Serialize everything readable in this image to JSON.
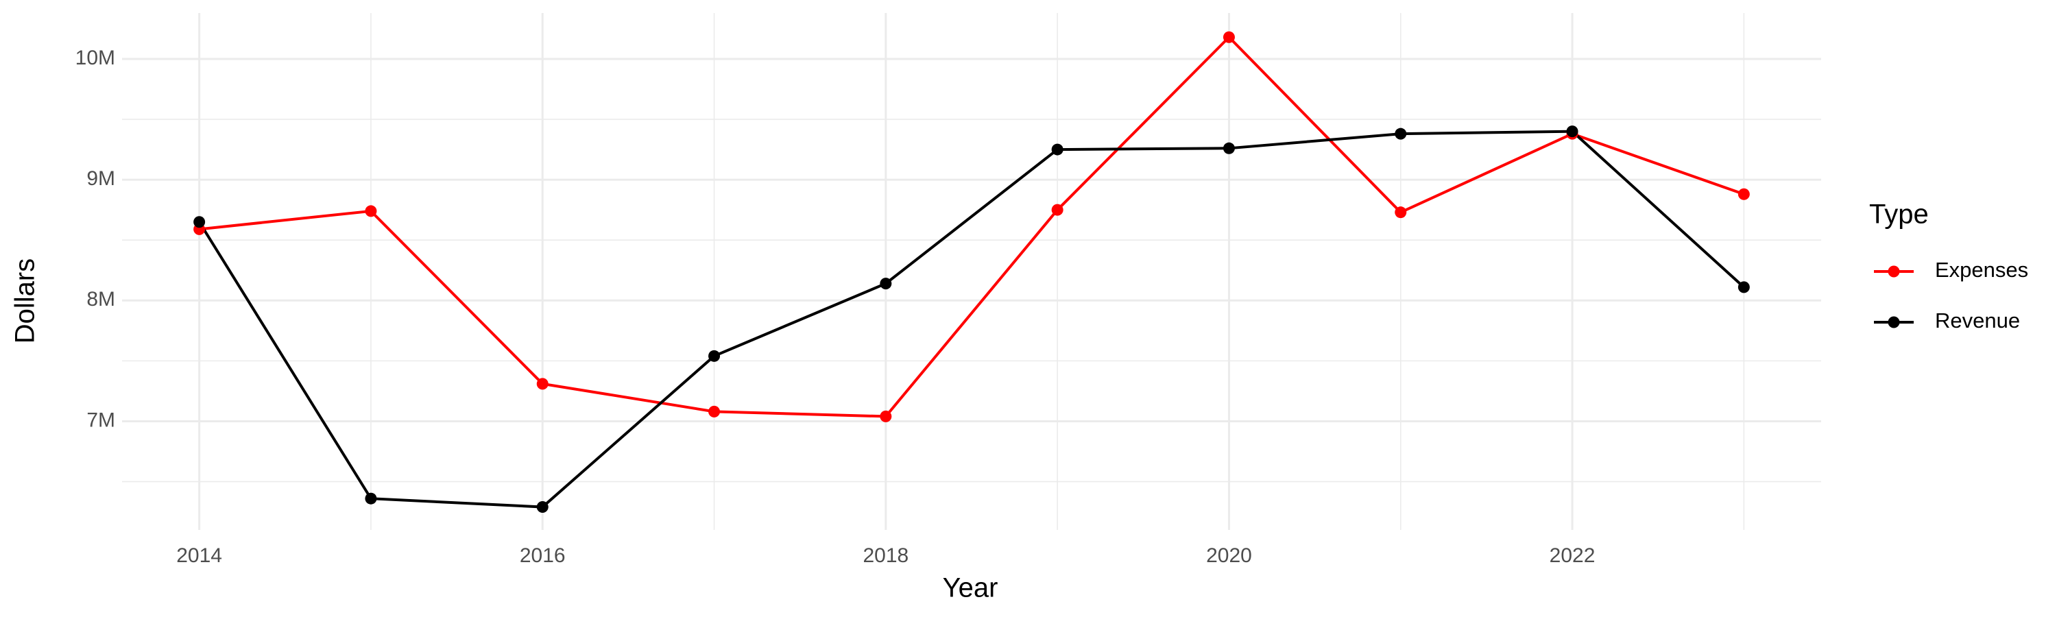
{
  "chart_data": {
    "type": "line",
    "x_label": "Year",
    "y_label": "Dollars",
    "x": [
      2014,
      2015,
      2016,
      2017,
      2018,
      2019,
      2020,
      2021,
      2022,
      2023
    ],
    "series": [
      {
        "name": "Expenses",
        "color": "#ff0000",
        "values": [
          8590000,
          8740000,
          7310000,
          7080000,
          7040000,
          8750000,
          10180000,
          8730000,
          9380000,
          8880000
        ]
      },
      {
        "name": "Revenue",
        "color": "#000000",
        "values": [
          8650000,
          6360000,
          6290000,
          7540000,
          8140000,
          9250000,
          9260000,
          9380000,
          9400000,
          8110000
        ]
      }
    ],
    "xlim": [
      2013.55,
      2023.45
    ],
    "xticks": [
      2014,
      2016,
      2018,
      2020,
      2022
    ],
    "x_minor_ticks": [
      2015,
      2017,
      2019,
      2021,
      2023
    ],
    "ylim": [
      6100000,
      10380000
    ],
    "yticks": [
      {
        "value": 7000000,
        "label": "7M"
      },
      {
        "value": 8000000,
        "label": "8M"
      },
      {
        "value": 9000000,
        "label": "9M"
      },
      {
        "value": 10000000,
        "label": "10M"
      }
    ],
    "y_minor_ticks": [
      6500000,
      7500000,
      8500000,
      9500000
    ],
    "grid": true,
    "legend_title": "Type",
    "legend_position": "right"
  }
}
